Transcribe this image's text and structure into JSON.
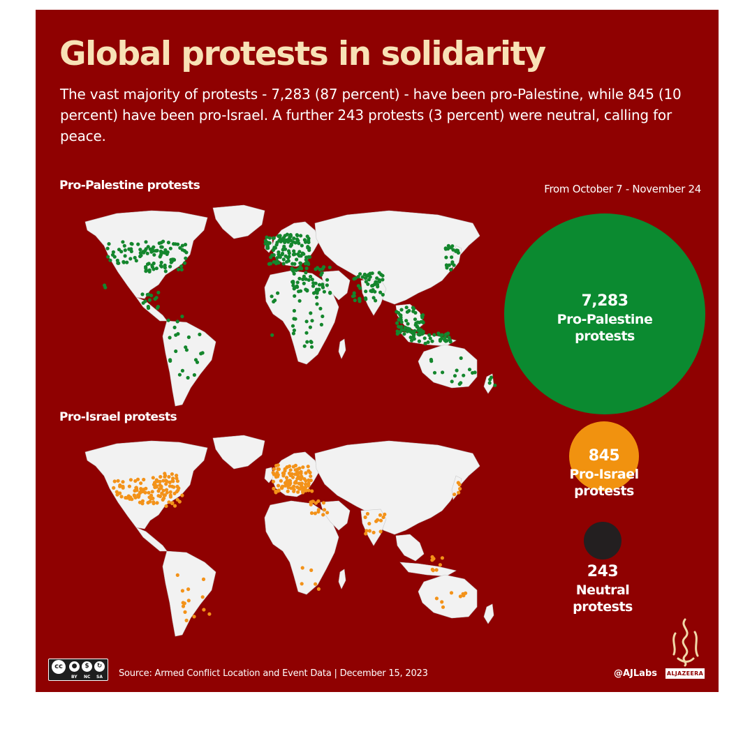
{
  "title": "Global protests in solidarity",
  "subtitle": "The vast majority of protests - 7,283 (87 percent) - have been pro-Palestine, while 845 (10 percent) have been pro-Israel. A further 243 protests (3 percent) were neutral, calling for peace.",
  "date_range": "From October 7 - November 24",
  "maps": [
    {
      "label": "Pro-Palestine protests",
      "dot_color": "#14862d"
    },
    {
      "label": "Pro-Israel protests",
      "dot_color": "#f39219"
    }
  ],
  "bubbles": [
    {
      "value": "7,283",
      "label_line1": "Pro-Palestine",
      "label_line2": "protests",
      "color": "#0b8a30",
      "count": 7283
    },
    {
      "value": "845",
      "label_line1": "Pro-Israel",
      "label_line2": "protests",
      "color": "#f1920f",
      "count": 845
    },
    {
      "value": "243",
      "label_line1": "Neutral",
      "label_line2": "protests",
      "color": "#231f20",
      "count": 243
    }
  ],
  "source": "Source: Armed Conflict Location and Event Data  |  December 15, 2023",
  "handle": "@AJLabs",
  "logo_text": "ALJAZEERA",
  "license": {
    "by": "BY",
    "nc": "NC",
    "sa": "SA"
  },
  "colors": {
    "background": "#8f0101",
    "title": "#f8e2b6",
    "land": "#f2f2f2"
  }
}
